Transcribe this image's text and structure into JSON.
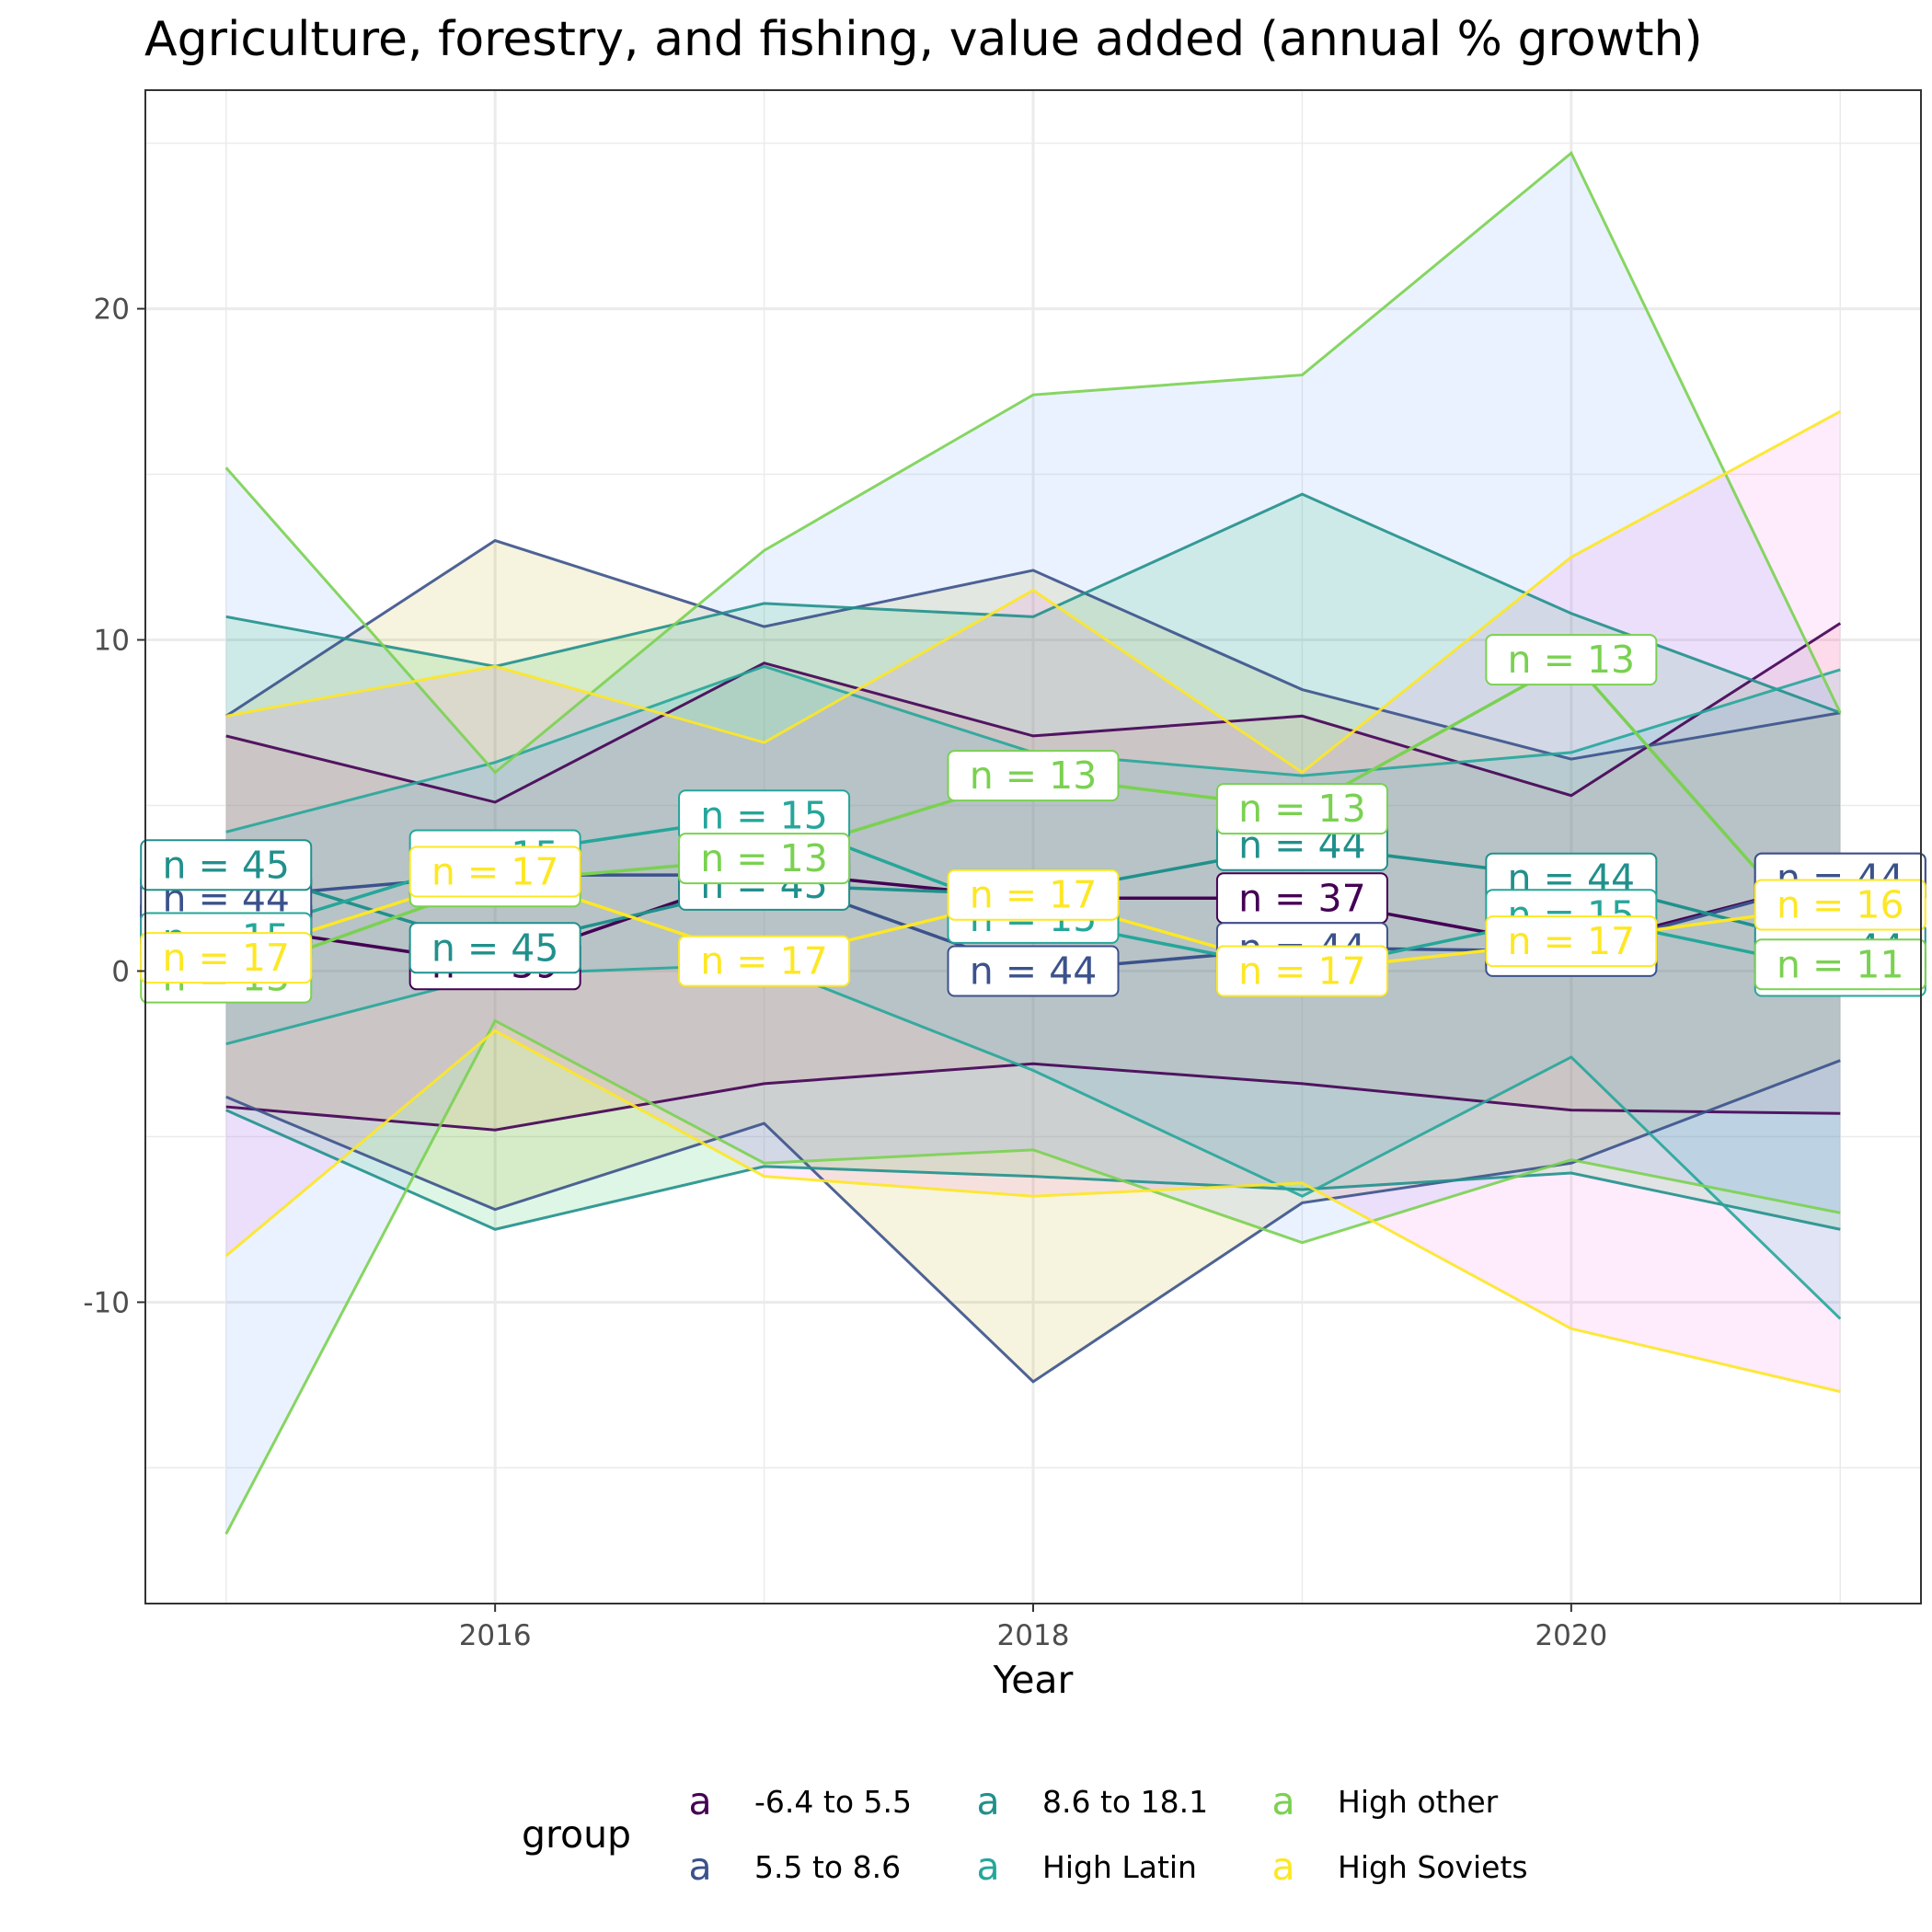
{
  "chart_data": {
    "type": "line",
    "title": "Agriculture, forestry, and fishing, value added (annual % growth)",
    "xlabel": "Year",
    "ylabel": "",
    "x": [
      2015,
      2016,
      2017,
      2018,
      2019,
      2020,
      2021
    ],
    "xlim": [
      2014.7,
      2021.3
    ],
    "ylim": [
      -19.1,
      26.6
    ],
    "x_ticks": [
      2016,
      2018,
      2020
    ],
    "y_ticks": [
      -10,
      0,
      10,
      20
    ],
    "grid": true,
    "legend": {
      "title": "group",
      "position": "bottom",
      "key_glyph": "a"
    },
    "series": [
      {
        "name": "-6.4 to 5.5",
        "color": "#440154",
        "band_color": "#f8766d",
        "mean": [
          1.4,
          0.2,
          3.0,
          2.2,
          2.2,
          0.7,
          2.8
        ],
        "upper": [
          7.1,
          5.1,
          9.3,
          7.1,
          7.7,
          5.3,
          10.5
        ],
        "lower": [
          -4.1,
          -4.8,
          -3.4,
          -2.8,
          -3.4,
          -4.2,
          -4.3
        ],
        "n": [
          39,
          39,
          39,
          39,
          37,
          44,
          39
        ]
      },
      {
        "name": "5.5 to 8.6",
        "color": "#3b528b",
        "band_color": "#b79f00",
        "mean": [
          2.2,
          2.9,
          2.9,
          0.0,
          0.7,
          0.6,
          2.8
        ],
        "upper": [
          7.7,
          13.0,
          10.4,
          12.1,
          8.5,
          6.4,
          7.8
        ],
        "lower": [
          -3.8,
          -7.2,
          -4.6,
          -12.4,
          -7.0,
          -5.8,
          -2.7
        ],
        "n": [
          44,
          44,
          44,
          44,
          44,
          44,
          44
        ]
      },
      {
        "name": "8.6 to 18.1",
        "color": "#21908c",
        "band_color": "#00ba38",
        "mean": [
          3.2,
          0.7,
          2.6,
          2.3,
          3.8,
          2.8,
          0.7
        ],
        "upper": [
          10.7,
          9.2,
          11.1,
          10.7,
          14.4,
          10.8,
          7.8
        ],
        "lower": [
          -4.2,
          -7.8,
          -5.9,
          -6.2,
          -6.6,
          -6.1,
          -7.8
        ],
        "n": [
          45,
          45,
          45,
          45,
          44,
          44,
          44
        ]
      },
      {
        "name": "High Latin",
        "color": "#26a69a",
        "band_color": "#00bfc4",
        "mean": [
          1.0,
          3.5,
          4.7,
          1.6,
          0.0,
          1.7,
          0.0
        ],
        "upper": [
          4.2,
          6.3,
          9.2,
          6.6,
          5.9,
          6.6,
          9.1
        ],
        "lower": [
          -2.2,
          -0.1,
          0.2,
          -3.0,
          -6.8,
          -2.6,
          -10.5
        ],
        "n": [
          15,
          15,
          15,
          15,
          15,
          15,
          14
        ]
      },
      {
        "name": "High other",
        "color": "#7ad151",
        "band_color": "#619cff",
        "mean": [
          -0.2,
          2.7,
          3.4,
          5.9,
          4.9,
          9.4,
          0.2
        ],
        "upper": [
          15.2,
          6.0,
          12.7,
          17.4,
          18.0,
          24.7,
          7.8
        ],
        "lower": [
          -17.0,
          -1.5,
          -5.8,
          -5.4,
          -8.2,
          -5.7,
          -7.3
        ],
        "n": [
          13,
          13,
          13,
          13,
          13,
          13,
          11
        ]
      },
      {
        "name": "High Soviets",
        "color": "#fde725",
        "band_color": "#f564e3",
        "mean": [
          0.4,
          3.0,
          0.3,
          2.3,
          0.0,
          0.9,
          2.0
        ],
        "upper": [
          7.7,
          9.2,
          6.9,
          11.5,
          6.0,
          12.5,
          16.9
        ],
        "lower": [
          -8.6,
          -1.8,
          -6.2,
          -6.8,
          -6.4,
          -10.8,
          -12.7
        ],
        "n": [
          17,
          17,
          17,
          17,
          17,
          17,
          16
        ]
      }
    ]
  }
}
